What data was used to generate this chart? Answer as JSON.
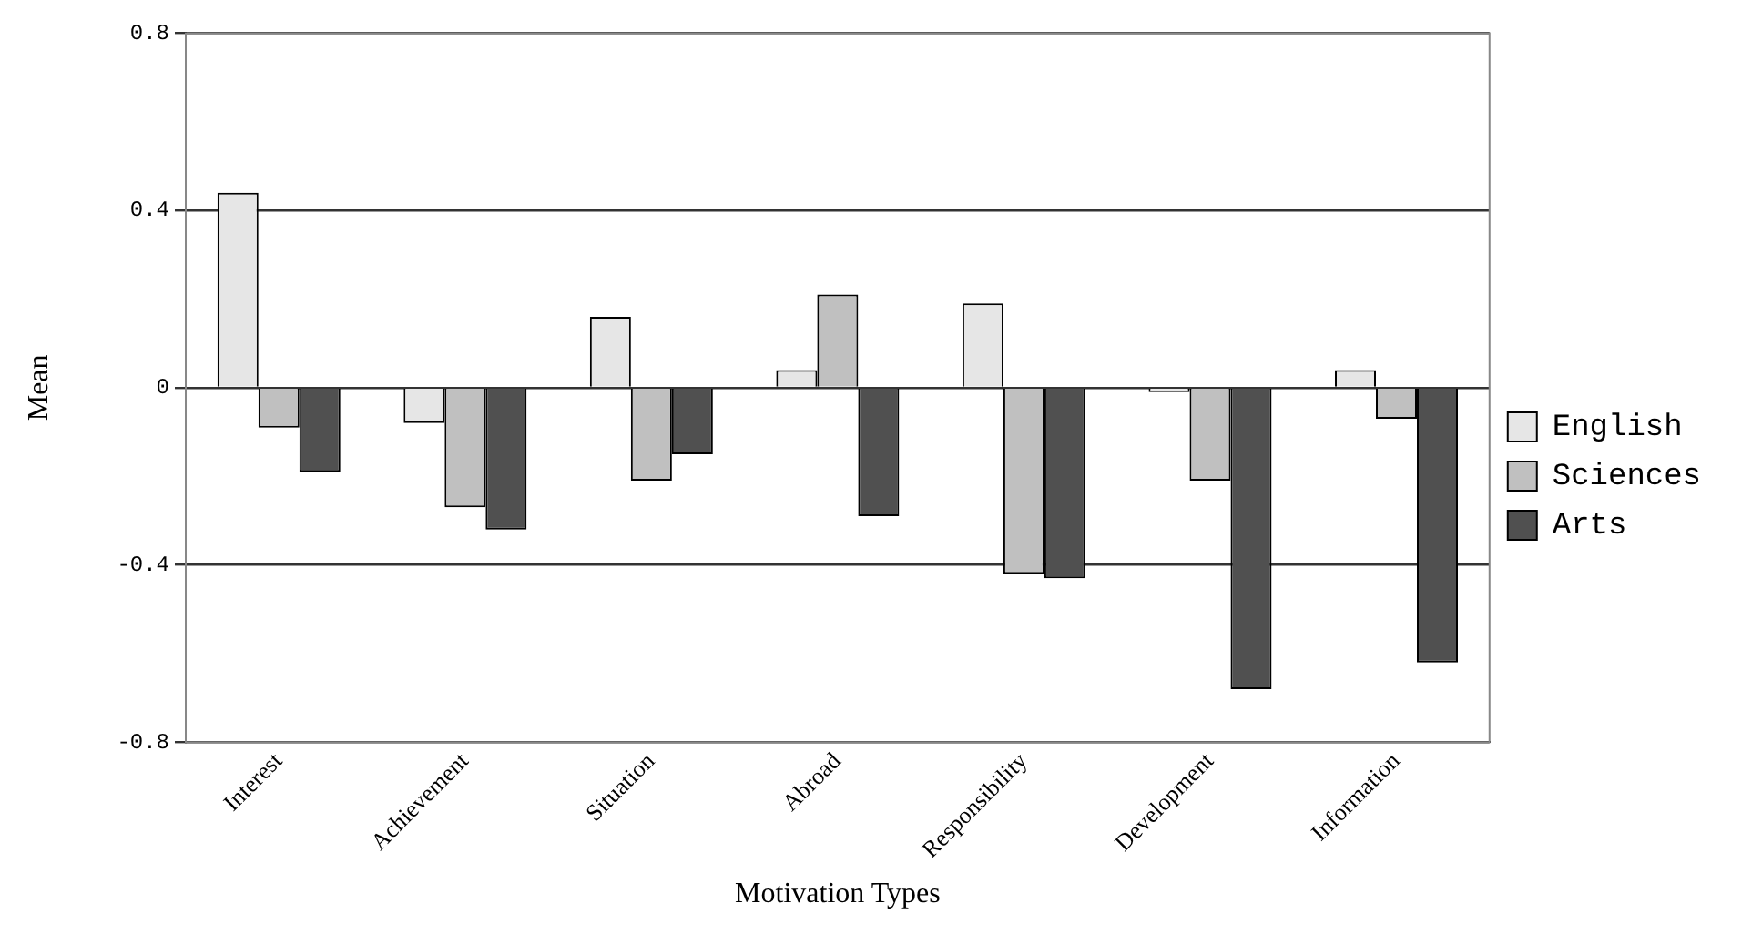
{
  "chart_data": {
    "type": "bar",
    "xlabel": "Motivation Types",
    "ylabel": "Mean",
    "categories": [
      "Interest",
      "Achievement",
      "Situation",
      "Abroad",
      "Responsibility",
      "Development",
      "Information"
    ],
    "series": [
      {
        "name": "English",
        "color": "#e6e6e6",
        "values": [
          0.44,
          -0.08,
          0.16,
          0.04,
          0.19,
          -0.01,
          0.04
        ]
      },
      {
        "name": "Sciences",
        "color": "#c0c0c0",
        "values": [
          -0.09,
          -0.27,
          -0.21,
          0.21,
          -0.42,
          -0.21,
          -0.07
        ]
      },
      {
        "name": "Arts",
        "color": "#505050",
        "values": [
          -0.19,
          -0.32,
          -0.15,
          -0.29,
          -0.43,
          -0.68,
          -0.62
        ]
      }
    ],
    "ylim": [
      -0.8,
      0.8
    ],
    "yticks": [
      -0.8,
      -0.4,
      0,
      0.4,
      0.8
    ],
    "grid": "y",
    "legend": "right"
  }
}
